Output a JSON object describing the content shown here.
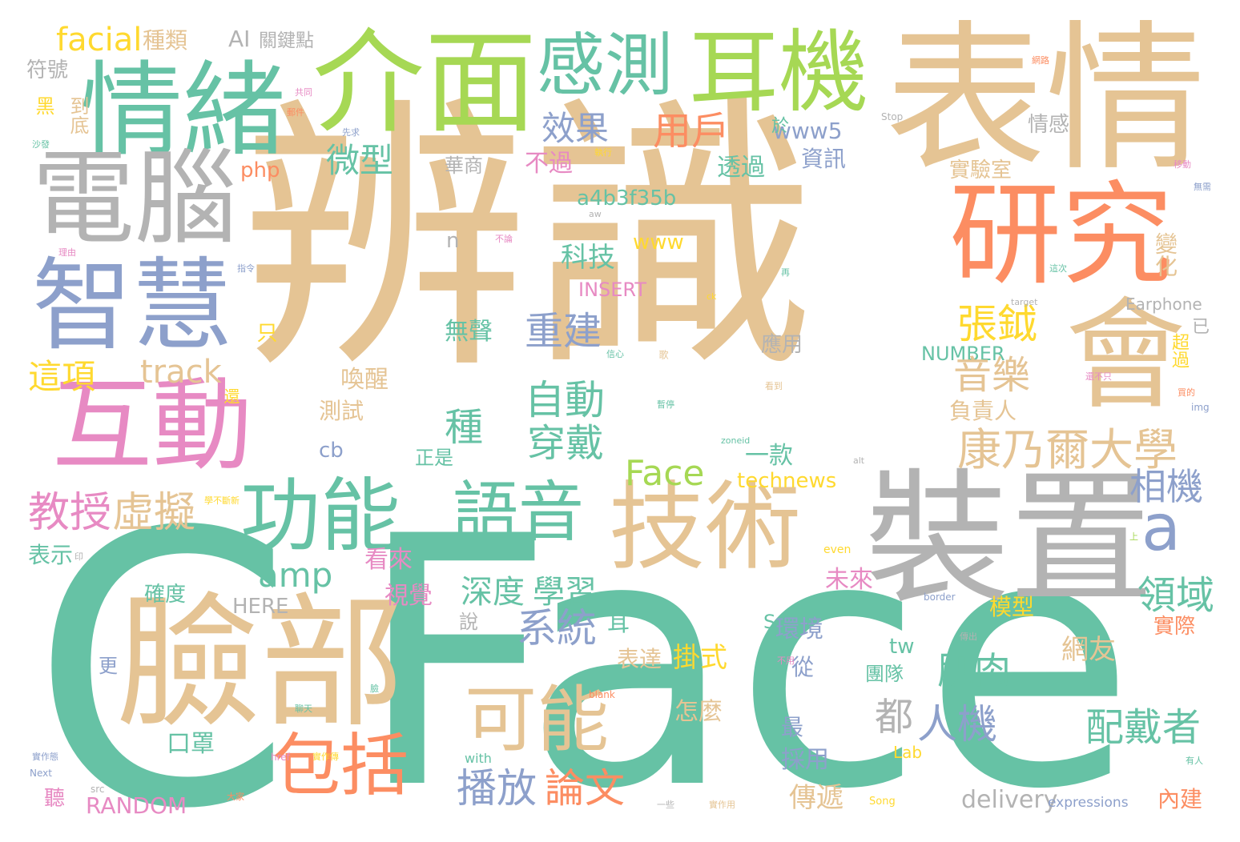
{
  "palette": {
    "teal": "#66c2a5",
    "orange": "#fc8d62",
    "blue": "#8da0cb",
    "pink": "#e78ac3",
    "green": "#a6d854",
    "yellow": "#ffd92f",
    "tan": "#e5c494",
    "gray": "#b3b3b3"
  },
  "words": [
    {
      "text": "辨識",
      "color": "tan"
    },
    {
      "text": "Face",
      "color": "teal"
    },
    {
      "text": "C",
      "color": "teal"
    },
    {
      "text": "表情",
      "color": "tan"
    },
    {
      "text": "臉部",
      "color": "tan"
    },
    {
      "text": "裝置",
      "color": "gray"
    },
    {
      "text": "介面",
      "color": "green"
    },
    {
      "text": "情緒",
      "color": "teal"
    },
    {
      "text": "電腦",
      "color": "gray"
    },
    {
      "text": "智慧",
      "color": "blue"
    },
    {
      "text": "互動",
      "color": "pink"
    },
    {
      "text": "研究",
      "color": "orange"
    },
    {
      "text": "耳機",
      "color": "green"
    },
    {
      "text": "會",
      "color": "tan"
    },
    {
      "text": "技術",
      "color": "tan"
    },
    {
      "text": "感測",
      "color": "teal"
    },
    {
      "text": "功能",
      "color": "teal"
    },
    {
      "text": "語音",
      "color": "teal"
    },
    {
      "text": "可能",
      "color": "tan"
    },
    {
      "text": "包括",
      "color": "orange"
    },
    {
      "text": "a",
      "color": "blue"
    },
    {
      "text": "康乃爾大學",
      "color": "tan"
    },
    {
      "text": "facial",
      "color": "yellow"
    },
    {
      "text": "種類",
      "color": "tan"
    },
    {
      "text": "AI",
      "color": "gray"
    },
    {
      "text": "關鍵點",
      "color": "gray"
    },
    {
      "text": "符號",
      "color": "gray"
    },
    {
      "text": "效果",
      "color": "blue"
    },
    {
      "text": "用戶",
      "color": "orange"
    },
    {
      "text": "微型",
      "color": "teal"
    },
    {
      "text": "www5",
      "color": "blue"
    },
    {
      "text": "php",
      "color": "orange"
    },
    {
      "text": "不過",
      "color": "pink"
    },
    {
      "text": "透過",
      "color": "teal"
    },
    {
      "text": "資訊",
      "color": "blue"
    },
    {
      "text": "華商",
      "color": "gray"
    },
    {
      "text": "a4b3f35b",
      "color": "teal"
    },
    {
      "text": "www",
      "color": "yellow"
    },
    {
      "text": "實驗室",
      "color": "tan"
    },
    {
      "text": "情感",
      "color": "gray"
    },
    {
      "text": "n",
      "color": "gray"
    },
    {
      "text": "科技",
      "color": "teal"
    },
    {
      "text": "INSERT",
      "color": "pink"
    },
    {
      "text": "Earphone",
      "color": "gray"
    },
    {
      "text": "張鉞",
      "color": "yellow"
    },
    {
      "text": "重建",
      "color": "blue"
    },
    {
      "text": "無聲",
      "color": "teal"
    },
    {
      "text": "NUMBER",
      "color": "teal"
    },
    {
      "text": "應用",
      "color": "gray"
    },
    {
      "text": "這項",
      "color": "yellow"
    },
    {
      "text": "track",
      "color": "tan"
    },
    {
      "text": "音樂",
      "color": "tan"
    },
    {
      "text": "自動",
      "color": "teal"
    },
    {
      "text": "喚醒",
      "color": "tan"
    },
    {
      "text": "負責人",
      "color": "tan"
    },
    {
      "text": "測試",
      "color": "tan"
    },
    {
      "text": "種",
      "color": "teal"
    },
    {
      "text": "穿戴",
      "color": "teal"
    },
    {
      "text": "一款",
      "color": "teal"
    },
    {
      "text": "cb",
      "color": "blue"
    },
    {
      "text": "正是",
      "color": "teal"
    },
    {
      "text": "Face",
      "color": "green"
    },
    {
      "text": "technews",
      "color": "yellow"
    },
    {
      "text": "相機",
      "color": "blue"
    },
    {
      "text": "教授",
      "color": "pink"
    },
    {
      "text": "虛擬",
      "color": "tan"
    },
    {
      "text": "表示",
      "color": "teal"
    },
    {
      "text": "看來",
      "color": "pink"
    },
    {
      "text": "amp",
      "color": "teal"
    },
    {
      "text": "深度",
      "color": "teal"
    },
    {
      "text": "學習",
      "color": "teal"
    },
    {
      "text": "領域",
      "color": "teal"
    },
    {
      "text": "系統",
      "color": "blue"
    },
    {
      "text": "確度",
      "color": "teal"
    },
    {
      "text": "HERE",
      "color": "gray"
    },
    {
      "text": "視覺",
      "color": "pink"
    },
    {
      "text": "SciFi",
      "color": "teal"
    },
    {
      "text": "未來",
      "color": "pink"
    },
    {
      "text": "模型",
      "color": "yellow"
    },
    {
      "text": "說",
      "color": "gray"
    },
    {
      "text": "耳",
      "color": "teal"
    },
    {
      "text": "環境",
      "color": "blue"
    },
    {
      "text": "實際",
      "color": "orange"
    },
    {
      "text": "表達",
      "color": "tan"
    },
    {
      "text": "掛式",
      "color": "yellow"
    },
    {
      "text": "tw",
      "color": "teal"
    },
    {
      "text": "網友",
      "color": "tan"
    },
    {
      "text": "肌肉",
      "color": "teal"
    },
    {
      "text": "都",
      "color": "gray"
    },
    {
      "text": "人機",
      "color": "blue"
    },
    {
      "text": "配戴者",
      "color": "teal"
    },
    {
      "text": "團隊",
      "color": "teal"
    },
    {
      "text": "從",
      "color": "blue"
    },
    {
      "text": "更",
      "color": "blue"
    },
    {
      "text": "口罩",
      "color": "teal"
    },
    {
      "text": "怎麼",
      "color": "tan"
    },
    {
      "text": "最",
      "color": "blue"
    },
    {
      "text": "採用",
      "color": "blue"
    },
    {
      "text": "播放",
      "color": "blue"
    },
    {
      "text": "論文",
      "color": "orange"
    },
    {
      "text": "聽",
      "color": "pink"
    },
    {
      "text": "RANDOM",
      "color": "pink"
    },
    {
      "text": "傳遞",
      "color": "tan"
    },
    {
      "text": "delivery",
      "color": "gray"
    },
    {
      "text": "expressions",
      "color": "blue"
    },
    {
      "text": "內建",
      "color": "orange"
    },
    {
      "text": "Lab",
      "color": "yellow"
    },
    {
      "text": "with",
      "color": "teal"
    },
    {
      "text": "只",
      "color": "yellow"
    },
    {
      "text": "已",
      "color": "gray"
    },
    {
      "text": "超過",
      "color": "yellow"
    },
    {
      "text": "變化",
      "color": "tan"
    },
    {
      "text": "黑",
      "color": "yellow"
    },
    {
      "text": "到底",
      "color": "tan"
    },
    {
      "text": "於",
      "color": "teal"
    },
    {
      "text": "還",
      "color": "yellow"
    },
    {
      "text": "Stop",
      "color": "gray"
    },
    {
      "text": "Song",
      "color": "yellow"
    },
    {
      "text": "Next",
      "color": "blue"
    },
    {
      "text": "src",
      "color": "gray"
    },
    {
      "text": "border",
      "color": "blue"
    },
    {
      "text": "blank",
      "color": "orange"
    },
    {
      "text": "href",
      "color": "pink"
    },
    {
      "text": "target",
      "color": "gray"
    },
    {
      "text": "zoneid",
      "color": "teal"
    },
    {
      "text": "img",
      "color": "blue"
    },
    {
      "text": "even",
      "color": "yellow"
    },
    {
      "text": "alt",
      "color": "gray"
    },
    {
      "text": "aw",
      "color": "gray"
    },
    {
      "text": "ck",
      "color": "yellow"
    },
    {
      "text": "先求",
      "color": "blue"
    },
    {
      "text": "共同",
      "color": "pink"
    },
    {
      "text": "郵件",
      "color": "orange"
    },
    {
      "text": "沙發",
      "color": "teal"
    },
    {
      "text": "執行",
      "color": "yellow"
    },
    {
      "text": "不論",
      "color": "pink"
    },
    {
      "text": "指令",
      "color": "blue"
    },
    {
      "text": "理由",
      "color": "pink"
    },
    {
      "text": "移動",
      "color": "pink"
    },
    {
      "text": "無需",
      "color": "blue"
    },
    {
      "text": "看到",
      "color": "tan"
    },
    {
      "text": "暫停",
      "color": "teal"
    },
    {
      "text": "實作用",
      "color": "tan"
    },
    {
      "text": "實作傳",
      "color": "yellow"
    },
    {
      "text": "實作態",
      "color": "blue"
    },
    {
      "text": "不用",
      "color": "pink"
    },
    {
      "text": "大家",
      "color": "orange"
    },
    {
      "text": "有人",
      "color": "teal"
    },
    {
      "text": "一些",
      "color": "gray"
    },
    {
      "text": "這次",
      "color": "teal"
    },
    {
      "text": "歌",
      "color": "tan"
    },
    {
      "text": "還不只",
      "color": "pink"
    },
    {
      "text": "買的",
      "color": "orange"
    },
    {
      "text": "上",
      "color": "green"
    },
    {
      "text": "印",
      "color": "gray"
    },
    {
      "text": "聊天",
      "color": "teal"
    },
    {
      "text": "臉",
      "color": "teal"
    },
    {
      "text": "傳出",
      "color": "gray"
    },
    {
      "text": "學不斷新",
      "color": "yellow"
    },
    {
      "text": "網路",
      "color": "orange"
    },
    {
      "text": "再",
      "color": "teal"
    },
    {
      "text": "信心",
      "color": "teal"
    }
  ]
}
